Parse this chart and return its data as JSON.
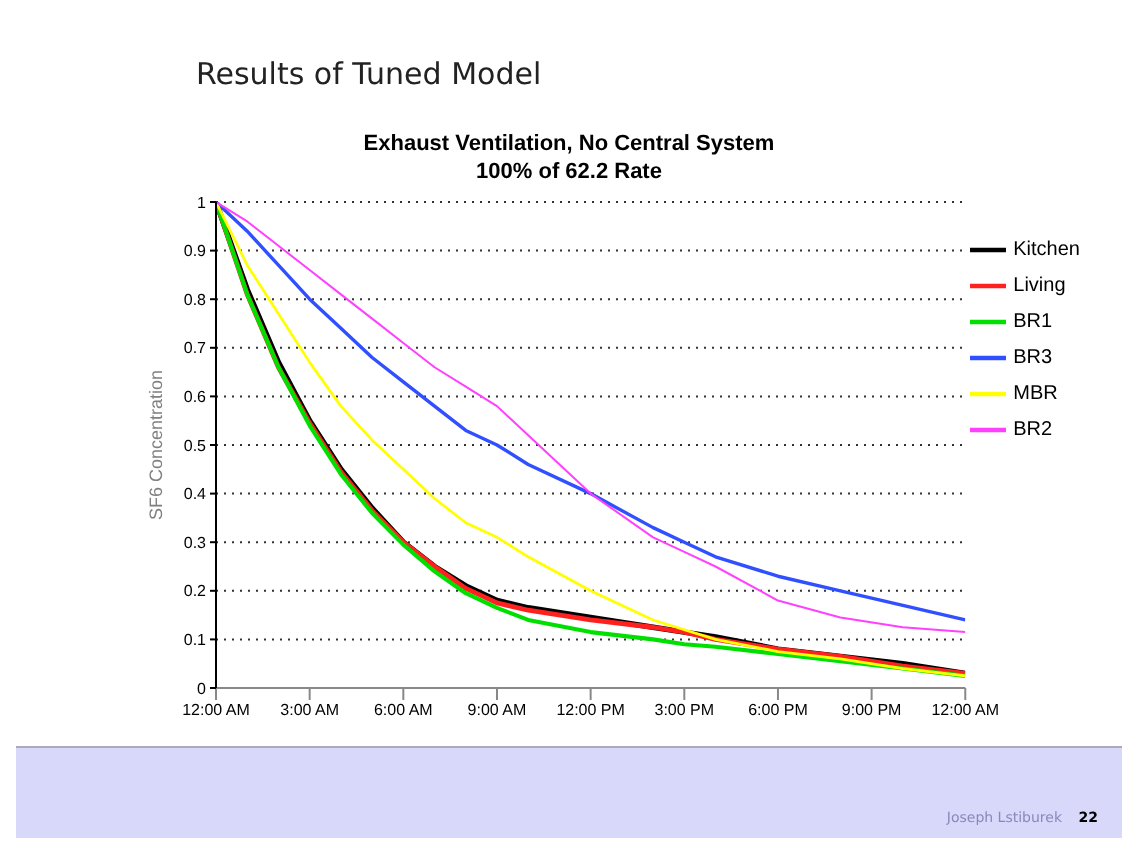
{
  "chart_data": {
    "type": "line",
    "title": "Results of Tuned Model",
    "subtitle": "Exhaust Ventilation, No Central System\n100% of 62.2 Rate",
    "ylabel": "SF6 Concentration",
    "annotations": [
      "Joseph Lstiburek",
      "22"
    ],
    "x": [
      0,
      1,
      2,
      3,
      4,
      5,
      6,
      7,
      8,
      9,
      10,
      12,
      14,
      15,
      16,
      18,
      20,
      22,
      24
    ],
    "xlim": [
      0,
      24
    ],
    "xticks": [
      {
        "value": 0,
        "label": "12:00 AM"
      },
      {
        "value": 3,
        "label": "3:00 AM"
      },
      {
        "value": 6,
        "label": "6:00 AM"
      },
      {
        "value": 9,
        "label": "9:00 AM"
      },
      {
        "value": 12,
        "label": "12:00 PM"
      },
      {
        "value": 15,
        "label": "3:00 PM"
      },
      {
        "value": 18,
        "label": "6:00 PM"
      },
      {
        "value": 21,
        "label": "9:00 PM"
      },
      {
        "value": 24,
        "label": "12:00 AM"
      }
    ],
    "ylim": [
      0,
      1
    ],
    "yticks": [
      0,
      0.1,
      0.2,
      0.3,
      0.4,
      0.5,
      0.6,
      0.7,
      0.8,
      0.9,
      1
    ],
    "grid": "y",
    "legend": "top right",
    "marker": "none",
    "line_style": "solid",
    "series": [
      {
        "name": "Kitchen",
        "color": "#000000",
        "values": [
          1,
          0.82,
          0.67,
          0.55,
          0.45,
          0.37,
          0.3,
          0.25,
          0.21,
          0.18,
          0.165,
          0.145,
          0.125,
          0.115,
          0.105,
          0.08,
          0.065,
          0.05,
          0.03
        ]
      },
      {
        "name": "Living",
        "color": "#ff2020",
        "values": [
          1,
          0.81,
          0.66,
          0.545,
          0.445,
          0.365,
          0.3,
          0.25,
          0.205,
          0.175,
          0.16,
          0.14,
          0.125,
          0.115,
          0.1,
          0.08,
          0.065,
          0.045,
          0.03
        ]
      },
      {
        "name": "BR1",
        "color": "#00e000",
        "values": [
          1,
          0.81,
          0.66,
          0.54,
          0.44,
          0.36,
          0.295,
          0.24,
          0.195,
          0.165,
          0.14,
          0.115,
          0.1,
          0.09,
          0.085,
          0.07,
          0.055,
          0.04,
          0.025
        ]
      },
      {
        "name": "BR3",
        "color": "#3050ff",
        "values": [
          1,
          0.94,
          0.87,
          0.8,
          0.74,
          0.68,
          0.63,
          0.58,
          0.53,
          0.5,
          0.46,
          0.4,
          0.33,
          0.3,
          0.27,
          0.23,
          0.2,
          0.17,
          0.14
        ]
      },
      {
        "name": "MBR",
        "color": "#ffff00",
        "values": [
          1,
          0.87,
          0.77,
          0.67,
          0.58,
          0.51,
          0.45,
          0.39,
          0.34,
          0.31,
          0.27,
          0.2,
          0.14,
          0.12,
          0.1,
          0.075,
          0.06,
          0.04,
          0.025
        ]
      },
      {
        "name": "BR2",
        "color": "#ff40ff",
        "values": [
          1,
          0.96,
          0.91,
          0.86,
          0.81,
          0.76,
          0.71,
          0.66,
          0.62,
          0.58,
          0.52,
          0.4,
          0.31,
          0.28,
          0.25,
          0.18,
          0.145,
          0.125,
          0.115
        ]
      }
    ]
  }
}
